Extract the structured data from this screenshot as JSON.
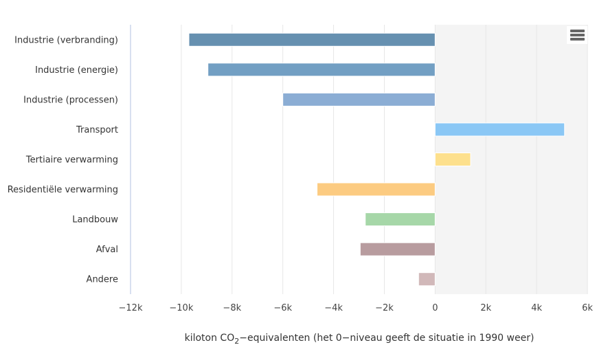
{
  "chart_data": {
    "type": "bar",
    "orientation": "horizontal",
    "categories": [
      "Industrie (verbranding)",
      "Industrie (energie)",
      "Industrie (processen)",
      "Transport",
      "Tertiaire verwarming",
      "Residentiële verwarming",
      "Landbouw",
      "Afval",
      "Andere"
    ],
    "values": [
      -9700,
      -8950,
      -6000,
      5100,
      1400,
      -4650,
      -2750,
      -2950,
      -650
    ],
    "colors": [
      "#6690b0",
      "#729fc3",
      "#8badd4",
      "#8ac7f5",
      "#fde08d",
      "#fccb81",
      "#a6d7a8",
      "#b89c9f",
      "#d1b8b9"
    ],
    "xlim": [
      -12000,
      6000
    ],
    "xticks": [
      -12000,
      -10000,
      -8000,
      -6000,
      -4000,
      -2000,
      0,
      2000,
      4000,
      6000
    ],
    "xtick_labels": [
      "−12k",
      "−10k",
      "−8k",
      "−6k",
      "−4k",
      "−2k",
      "0",
      "2k",
      "4k",
      "6k"
    ],
    "xlabel": "kiloton CO",
    "xlabel_sub": "2",
    "xlabel_rest": "−equivalenten (het 0−niveau geeft de situatie in 1990 weer)",
    "title": "",
    "grid": true,
    "shaded_region_from": 0,
    "shaded_region_color": "#f4f4f4"
  },
  "menu": {
    "icon": "hamburger-menu-icon"
  }
}
